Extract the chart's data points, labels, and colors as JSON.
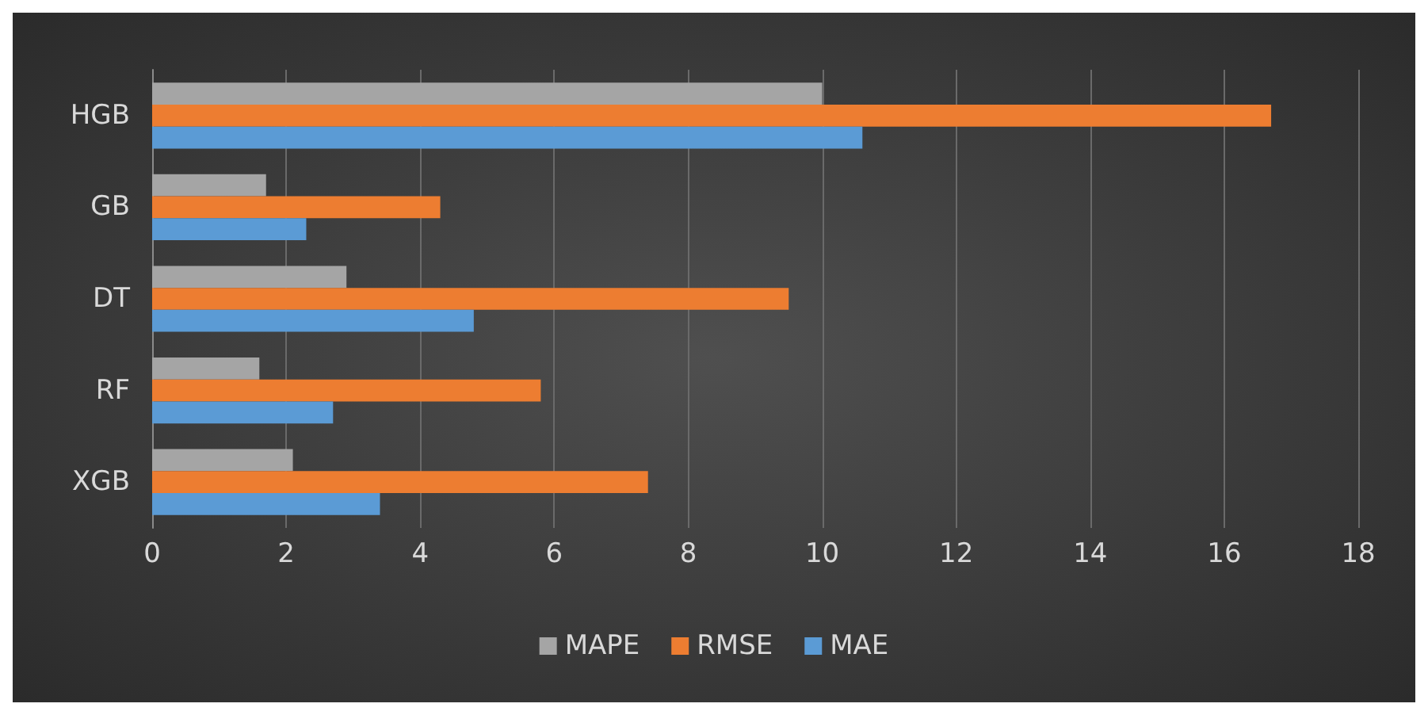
{
  "chart_data": {
    "type": "bar",
    "orientation": "horizontal",
    "categories": [
      "HGB",
      "GB",
      "DT",
      "RF",
      "XGB"
    ],
    "series": [
      {
        "name": "MAPE",
        "color": "#a5a5a5",
        "values": [
          10.0,
          1.7,
          2.9,
          1.6,
          2.1
        ]
      },
      {
        "name": "RMSE",
        "color": "#ed7d31",
        "values": [
          16.7,
          4.3,
          9.5,
          5.8,
          7.4
        ]
      },
      {
        "name": "MAE",
        "color": "#5b9bd5",
        "values": [
          10.6,
          2.3,
          4.8,
          2.7,
          3.4
        ]
      }
    ],
    "xlim": [
      0,
      18
    ],
    "xticks": [
      0,
      2,
      4,
      6,
      8,
      10,
      12,
      14,
      16,
      18
    ],
    "grid": "x",
    "legend": "bottom"
  }
}
